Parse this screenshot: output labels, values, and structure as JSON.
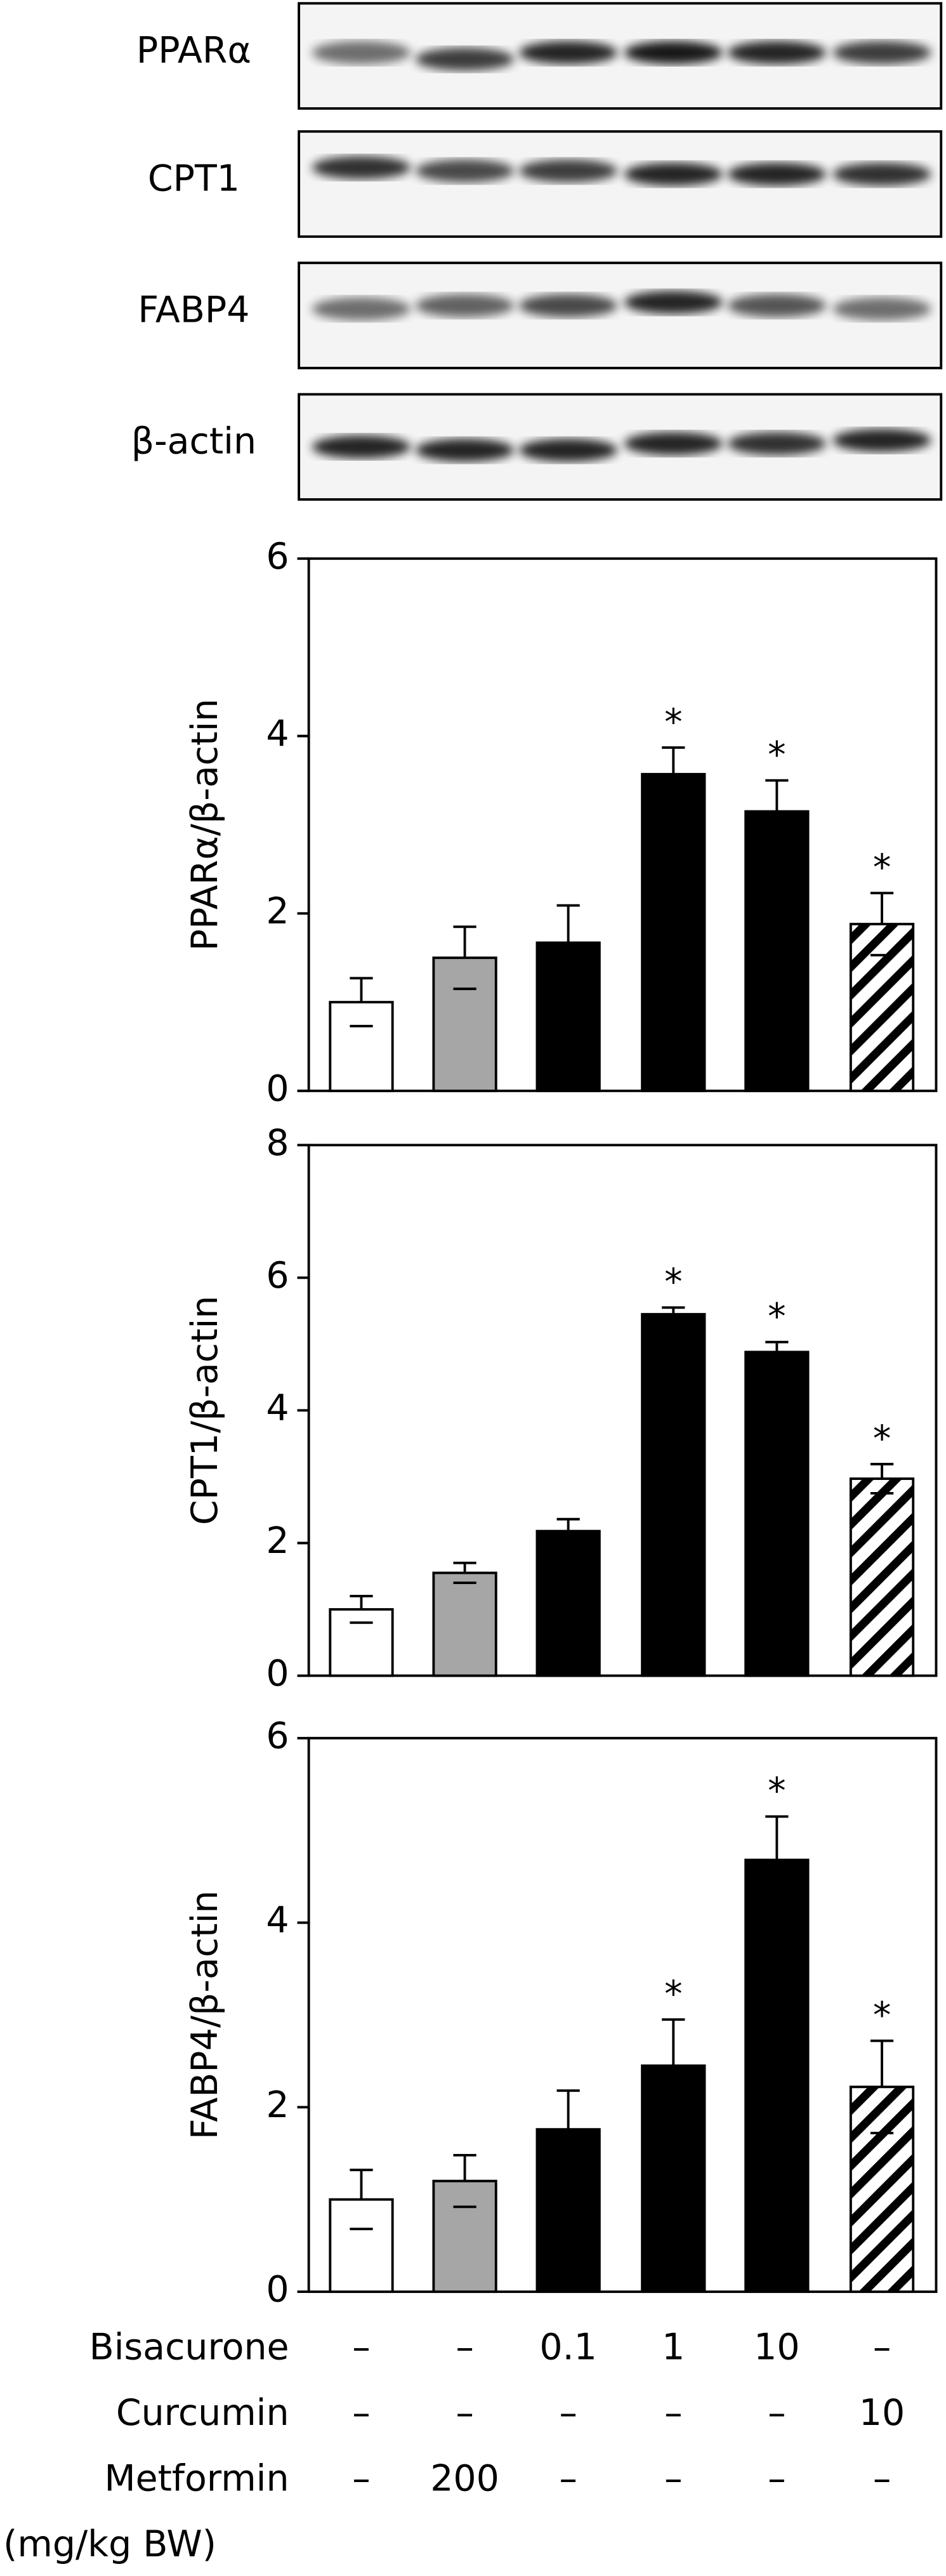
{
  "blots": {
    "labels": [
      "PPARα",
      "CPT1",
      "FABP4",
      "β-actin"
    ]
  },
  "chart_data": [
    {
      "type": "bar",
      "ylabel": "PPARα/β-actin",
      "ylim": [
        0,
        6
      ],
      "yticks": [
        0,
        2,
        4,
        6
      ],
      "values": [
        1.0,
        1.5,
        1.67,
        3.57,
        3.15,
        1.88
      ],
      "errors": [
        0.27,
        0.35,
        0.42,
        0.3,
        0.35,
        0.35
      ],
      "colors": [
        "#ffffff",
        "#a6a6a6",
        "#000000",
        "#000000",
        "#000000",
        "hatch"
      ],
      "significance": [
        null,
        null,
        null,
        "*",
        "*",
        "*"
      ]
    },
    {
      "type": "bar",
      "ylabel": "CPT1/β-actin",
      "ylim": [
        0,
        8
      ],
      "yticks": [
        0,
        2,
        4,
        6,
        8
      ],
      "values": [
        1.0,
        1.55,
        2.18,
        5.45,
        4.88,
        2.97
      ],
      "errors": [
        0.2,
        0.15,
        0.18,
        0.1,
        0.15,
        0.22
      ],
      "colors": [
        "#ffffff",
        "#a6a6a6",
        "#000000",
        "#000000",
        "#000000",
        "hatch"
      ],
      "significance": [
        null,
        null,
        null,
        "*",
        "*",
        "*"
      ]
    },
    {
      "type": "bar",
      "ylabel": "FABP4/β-actin",
      "ylim": [
        0,
        6
      ],
      "yticks": [
        0,
        2,
        4,
        6
      ],
      "values": [
        1.0,
        1.2,
        1.76,
        2.45,
        4.68,
        2.22
      ],
      "errors": [
        0.32,
        0.28,
        0.42,
        0.5,
        0.47,
        0.5
      ],
      "colors": [
        "#ffffff",
        "#a6a6a6",
        "#000000",
        "#000000",
        "#000000",
        "hatch"
      ],
      "significance": [
        null,
        null,
        null,
        "*",
        "*",
        "*"
      ]
    }
  ],
  "treatments": {
    "rows": [
      {
        "label": "Bisacurone",
        "values": [
          "–",
          "–",
          "0.1",
          "1",
          "10",
          "–"
        ]
      },
      {
        "label": "Curcumin",
        "values": [
          "–",
          "–",
          "–",
          "–",
          "–",
          "10"
        ]
      },
      {
        "label": "Metformin",
        "values": [
          "–",
          "200",
          "–",
          "–",
          "–",
          "–"
        ]
      }
    ],
    "unit": "(mg/kg BW)"
  }
}
